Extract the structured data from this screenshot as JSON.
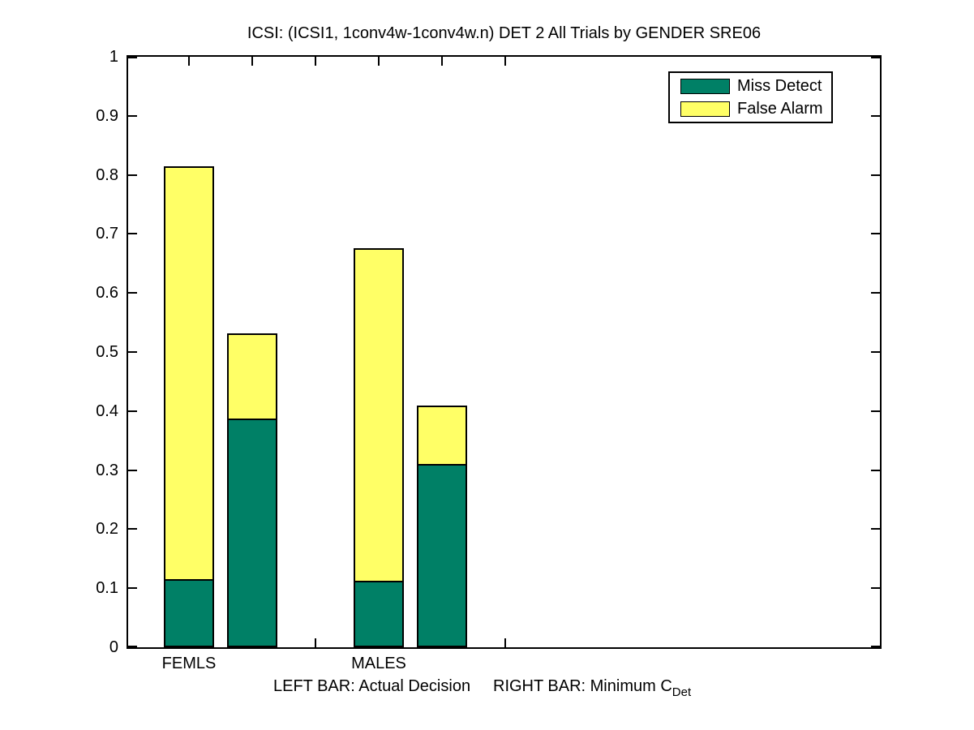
{
  "figure": {
    "title": "ICSI: (ICSI1, 1conv4w-1conv4w.n) DET 2 All Trials by GENDER SRE06"
  },
  "legend": {
    "items": [
      {
        "label": "Miss Detect",
        "color": "#008066"
      },
      {
        "label": "False Alarm",
        "color": "#FFFF66"
      }
    ]
  },
  "footnote": {
    "left_bar": "LEFT BAR: Actual Decision",
    "right_bar": "RIGHT BAR: Minimum C",
    "right_bar_subscript": "Det"
  },
  "chart_data": {
    "type": "bar",
    "stacked": true,
    "title": "ICSI: (ICSI1, 1conv4w-1conv4w.n) DET 2 All Trials by GENDER SRE06",
    "ylim": [
      0,
      1
    ],
    "y_ticks": [
      0,
      0.1,
      0.2,
      0.3,
      0.4,
      0.5,
      0.6,
      0.7,
      0.8,
      0.9,
      1
    ],
    "y_tick_labels": [
      "0",
      "0.1",
      "0.2",
      "0.3",
      "0.4",
      "0.5",
      "0.6",
      "0.7",
      "0.8",
      "0.9",
      "1"
    ],
    "x_tick_slots": [
      1,
      2,
      3,
      4,
      5,
      6
    ],
    "series": [
      "Miss Detect",
      "False Alarm"
    ],
    "colors": {
      "miss_detect": "#008066",
      "false_alarm": "#FFFF66",
      "bar_edge": "#000000"
    },
    "groups": [
      {
        "label": "FEMLS",
        "label_slot": 1,
        "bars": [
          {
            "slot": 1,
            "bar_role": "actual_decision",
            "miss_detect": 0.115,
            "false_alarm": 0.7,
            "total": 0.815
          },
          {
            "slot": 2,
            "bar_role": "minimum_cdet",
            "miss_detect": 0.388,
            "false_alarm": 0.143,
            "total": 0.531
          }
        ]
      },
      {
        "label": "MALES",
        "label_slot": 4,
        "bars": [
          {
            "slot": 4,
            "bar_role": "actual_decision",
            "miss_detect": 0.113,
            "false_alarm": 0.563,
            "total": 0.676
          },
          {
            "slot": 5,
            "bar_role": "minimum_cdet",
            "miss_detect": 0.31,
            "false_alarm": 0.099,
            "total": 0.409
          }
        ]
      }
    ]
  }
}
